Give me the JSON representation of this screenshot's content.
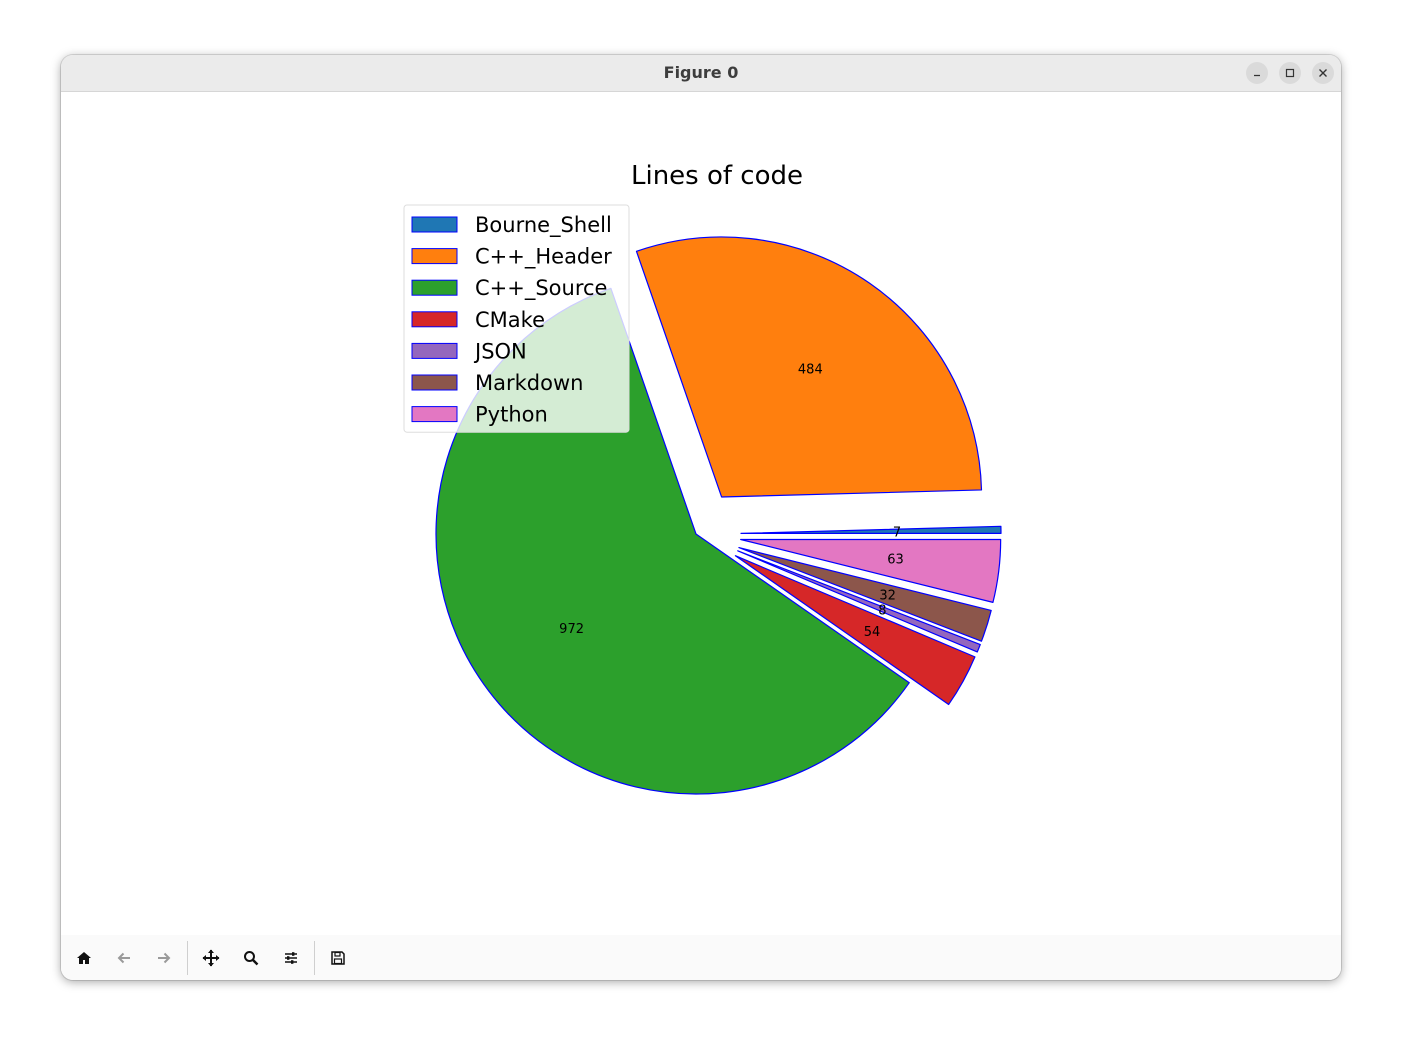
{
  "window": {
    "title": "Figure 0"
  },
  "toolbar": {
    "buttons": [
      {
        "icon": "home-icon",
        "enabled": true
      },
      {
        "icon": "back-arrow-icon",
        "enabled": false
      },
      {
        "icon": "forward-arrow-icon",
        "enabled": false
      },
      {
        "icon": "pan-icon",
        "enabled": true
      },
      {
        "icon": "zoom-icon",
        "enabled": true
      },
      {
        "icon": "configure-subplots-icon",
        "enabled": true
      },
      {
        "icon": "save-icon",
        "enabled": true
      }
    ]
  },
  "chart_data": {
    "type": "pie",
    "title": "Lines of code",
    "categories": [
      "Bourne_Shell",
      "C++_Header",
      "C++_Source",
      "CMake",
      "JSON",
      "Markdown",
      "Python"
    ],
    "values": [
      7,
      484,
      972,
      54,
      8,
      32,
      63
    ],
    "data_labels": [
      "7",
      "484",
      "972",
      "54",
      "8",
      "32",
      "63"
    ],
    "colors": [
      "#1f77b4",
      "#ff7f0e",
      "#2ca02c",
      "#d62728",
      "#9467bd",
      "#8c564b",
      "#e377c2"
    ],
    "explode": [
      0.1,
      0.1,
      0,
      0.1,
      0.1,
      0.1,
      0.1
    ],
    "edge_color": "#0000ff",
    "start_angle_deg": 0,
    "counterclockwise": true,
    "legend_position": "upper-left"
  }
}
